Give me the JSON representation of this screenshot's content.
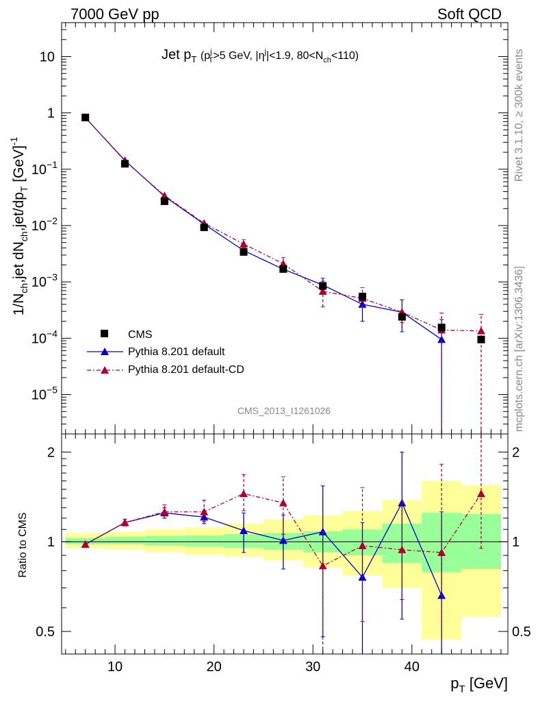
{
  "header": {
    "left": "7000 GeV pp",
    "right": "Soft QCD"
  },
  "side": {
    "top": "Rivet 3.1.10, ≥ 300k events",
    "bottom": "mcplots.cern.ch [arXiv:1306.3436]"
  },
  "watermark": "CMS_2013_I1261026",
  "colors": {
    "cms": "#000000",
    "default": "#0000cc",
    "cd": "#aa0033",
    "band_inner": "#99ff99",
    "band_outer": "#ffff99"
  },
  "chart_data": [
    {
      "panel": "main",
      "type": "scatter",
      "title": {
        "main": "Jet p",
        "sub": "T",
        "cuts": "(p",
        "c1sub": "T",
        "c1sup": "j",
        "c2": ">5 GeV, |η",
        "c2sup": "j",
        "c3": "|<1.9, 80<N",
        "c3sub": "ch",
        "c4": "<110)"
      },
      "ylabel": {
        "a": "1/N",
        "a_sub": "ch",
        "b": ",jet dN",
        "b_sub": "ch",
        "c": ",jet/dp",
        "c_sub": "T",
        "d": " [GeV]",
        "d_sup": "-1"
      },
      "yscale": "log",
      "ylim": [
        2e-06,
        40
      ],
      "xlim": [
        4.6,
        49.7
      ],
      "yticks": [
        {
          "v": 10,
          "label": "10"
        },
        {
          "v": 1,
          "label": "1"
        },
        {
          "v": 0.1,
          "label": "10",
          "sup": "−1"
        },
        {
          "v": 0.01,
          "label": "10",
          "sup": "−2"
        },
        {
          "v": 0.001,
          "label": "10",
          "sup": "−3"
        },
        {
          "v": 0.0001,
          "label": "10",
          "sup": "−4"
        },
        {
          "v": 1e-05,
          "label": "10",
          "sup": "−5"
        }
      ],
      "legend": {
        "position": "bottom-left",
        "entries": [
          {
            "key": "cms",
            "label": "CMS"
          },
          {
            "key": "default",
            "label": "Pythia 8.201 default"
          },
          {
            "key": "cd",
            "label": "Pythia 8.201 default-CD"
          }
        ]
      },
      "series": [
        {
          "key": "cms",
          "marker": "square",
          "x": [
            7,
            11,
            15,
            19,
            23,
            27,
            31,
            35,
            39,
            43,
            47
          ],
          "y": [
            0.83,
            0.125,
            0.027,
            0.0093,
            0.0034,
            0.0017,
            0.00085,
            0.00055,
            0.00024,
            0.000155,
            9.5e-05
          ]
        },
        {
          "key": "default",
          "marker": "triangle",
          "x": [
            7,
            11,
            15,
            19,
            23,
            27,
            31,
            35,
            39,
            43
          ],
          "y": [
            0.82,
            0.143,
            0.033,
            0.0106,
            0.0036,
            0.00168,
            0.00088,
            0.0004,
            0.00029,
            9.5e-05
          ],
          "err_lo": [
            0.0,
            0.0,
            0.0,
            0.0,
            0.0,
            0.0002,
            0.00015,
            0.0002,
            0.00016,
            9.5e-05
          ],
          "err_hi": [
            0.0,
            0.0,
            0.0,
            0.0,
            0.0,
            0.0002,
            0.00028,
            0.00023,
            0.00019,
            0.00012
          ]
        },
        {
          "key": "cd",
          "marker": "triangle",
          "x": [
            7,
            11,
            15,
            19,
            23,
            27,
            31,
            35,
            39,
            43,
            47
          ],
          "y": [
            0.83,
            0.14,
            0.034,
            0.011,
            0.0047,
            0.0021,
            0.00068,
            0.00051,
            0.00029,
            0.00014,
            0.000135
          ],
          "err_lo": [
            0.0,
            0.0,
            0.0,
            0.0,
            0.0007,
            0.0005,
            0.00032,
            0.00015,
            0.0001,
            0.00014,
            0.000135
          ],
          "err_hi": [
            0.0,
            0.0,
            0.0,
            0.0,
            0.0009,
            0.0006,
            0.00035,
            0.00028,
            0.00019,
            0.00014,
            0.00013
          ]
        }
      ]
    },
    {
      "panel": "ratio",
      "type": "line",
      "ylabel": "Ratio to CMS",
      "yscale": "log",
      "ylim": [
        0.42,
        2.3
      ],
      "xlim": [
        4.6,
        49.7
      ],
      "xlabel": {
        "main": "p",
        "sub": "T",
        "unit": " [GeV]"
      },
      "xticks": [
        10,
        20,
        30,
        40
      ],
      "yticks": [
        {
          "v": 2,
          "label": "2"
        },
        {
          "v": 1,
          "label": "1"
        },
        {
          "v": 0.5,
          "label": "0.5"
        }
      ],
      "bands": {
        "edges": [
          5,
          9,
          13,
          17,
          21,
          25,
          29,
          33,
          37,
          41,
          45,
          49
        ],
        "inner": [
          [
            0.98,
            1.03
          ],
          [
            0.98,
            1.04
          ],
          [
            0.97,
            1.045
          ],
          [
            0.965,
            1.05
          ],
          [
            0.955,
            1.06
          ],
          [
            0.94,
            1.07
          ],
          [
            0.92,
            1.085
          ],
          [
            0.9,
            1.1
          ],
          [
            0.85,
            1.15
          ],
          [
            0.79,
            1.25
          ],
          [
            0.81,
            1.24
          ]
        ],
        "outer": [
          [
            0.95,
            1.07
          ],
          [
            0.94,
            1.08
          ],
          [
            0.925,
            1.1
          ],
          [
            0.905,
            1.12
          ],
          [
            0.89,
            1.15
          ],
          [
            0.865,
            1.19
          ],
          [
            0.82,
            1.23
          ],
          [
            0.77,
            1.27
          ],
          [
            0.7,
            1.38
          ],
          [
            0.47,
            1.6
          ],
          [
            0.56,
            1.55
          ]
        ]
      },
      "series": [
        {
          "key": "default",
          "marker": "triangle",
          "x": [
            7,
            11,
            15,
            19,
            23,
            27,
            31,
            35,
            39,
            43
          ],
          "y": [
            0.98,
            1.16,
            1.25,
            1.21,
            1.09,
            1.01,
            1.08,
            0.76,
            1.35,
            0.66
          ],
          "err_lo": [
            0.0,
            0.03,
            0.05,
            0.06,
            0.17,
            0.2,
            0.6,
            0.4,
            0.8,
            0.3
          ],
          "err_hi": [
            0.0,
            0.03,
            0.05,
            0.06,
            0.16,
            0.22,
            0.46,
            0.4,
            0.65,
            0.6
          ]
        },
        {
          "key": "cd",
          "marker": "triangle",
          "x": [
            7,
            11,
            15,
            19,
            23,
            27,
            31,
            35,
            39,
            43,
            47
          ],
          "y": [
            0.98,
            1.16,
            1.26,
            1.26,
            1.45,
            1.35,
            0.83,
            0.97,
            0.94,
            0.92,
            1.45
          ],
          "err_lo": [
            0.0,
            0.03,
            0.06,
            0.09,
            0.18,
            0.29,
            0.41,
            0.43,
            0.3,
            0.5,
            0.5
          ],
          "err_hi": [
            0.0,
            0.03,
            0.07,
            0.12,
            0.23,
            0.3,
            0.25,
            0.55,
            0.4,
            0.9,
            0.9
          ]
        }
      ]
    }
  ]
}
